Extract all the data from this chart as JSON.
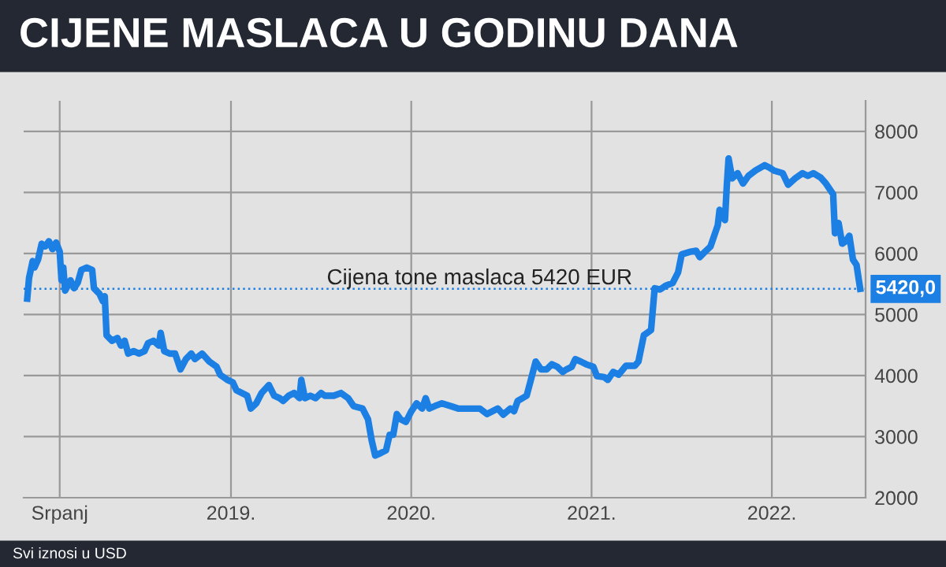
{
  "chart_data": {
    "type": "line",
    "title": "CIJENE MASLACA U GODINU DANA",
    "annotations": [
      {
        "text": "5420,0",
        "x": 2022.49,
        "y": 5420
      },
      "Svi iznosi u USD"
    ],
    "x": [
      2017.87,
      2017.88,
      2017.9,
      2017.91,
      2017.93,
      2017.95,
      2017.97,
      2017.99,
      2018.01,
      2018.03,
      2018.05,
      2018.06,
      2018.07,
      2018.08,
      2018.11,
      2018.13,
      2018.15,
      2018.17,
      2018.2,
      2018.23,
      2018.24,
      2018.27,
      2018.29,
      2018.3,
      2018.31,
      2018.34,
      2018.37,
      2018.39,
      2018.41,
      2018.43,
      2018.46,
      2018.49,
      2018.52,
      2018.54,
      2018.57,
      2018.6,
      2018.61,
      2018.63,
      2018.66,
      2018.69,
      2018.72,
      2018.75,
      2018.78,
      2018.8,
      2018.84,
      2018.88,
      2018.92,
      2018.94,
      2018.98,
      2019.01,
      2019.03,
      2019.06,
      2019.09,
      2019.11,
      2019.14,
      2019.17,
      2019.21,
      2019.24,
      2019.27,
      2019.29,
      2019.32,
      2019.35,
      2019.38,
      2019.39,
      2019.41,
      2019.44,
      2019.47,
      2019.5,
      2019.52,
      2019.57,
      2019.61,
      2019.65,
      2019.68,
      2019.73,
      2019.76,
      2019.78,
      2019.8,
      2019.83,
      2019.86,
      2019.88,
      2019.9,
      2019.92,
      2019.94,
      2019.97,
      2020.0,
      2020.03,
      2020.06,
      2020.08,
      2020.1,
      2020.13,
      2020.17,
      2020.22,
      2020.26,
      2020.3,
      2020.38,
      2020.42,
      2020.45,
      2020.48,
      2020.51,
      2020.55,
      2020.57,
      2020.59,
      2020.64,
      2020.66,
      2020.69,
      2020.72,
      2020.75,
      2020.78,
      2020.81,
      2020.84,
      2020.86,
      2020.89,
      2020.91,
      2020.94,
      2020.97,
      2021.01,
      2021.03,
      2021.07,
      2021.09,
      2021.12,
      2021.15,
      2021.19,
      2021.24,
      2021.26,
      2021.29,
      2021.33,
      2021.35,
      2021.38,
      2021.41,
      2021.45,
      2021.48,
      2021.5,
      2021.55,
      2021.58,
      2021.6,
      2021.63,
      2021.66,
      2021.7,
      2021.71,
      2021.74,
      2021.75,
      2021.76,
      2021.78,
      2021.81,
      2021.84,
      2021.87,
      2021.91,
      2021.96,
      2021.99,
      2022.01,
      2022.06,
      2022.09,
      2022.13,
      2022.17,
      2022.2,
      2022.23,
      2022.27,
      2022.3,
      2022.34,
      2022.35,
      2022.37,
      2022.39,
      2022.41,
      2022.43,
      2022.45,
      2022.47,
      2022.49
    ],
    "series": [
      {
        "color": "#1b7fe3",
        "values": [
          5260,
          5600,
          5875,
          5770,
          5900,
          6160,
          6115,
          6200,
          6070,
          6180,
          6030,
          5560,
          5770,
          5390,
          5560,
          5430,
          5520,
          5730,
          5770,
          5730,
          5430,
          5340,
          5215,
          5300,
          4660,
          4570,
          4615,
          4490,
          4570,
          4360,
          4400,
          4360,
          4400,
          4530,
          4570,
          4490,
          4700,
          4400,
          4360,
          4360,
          4100,
          4270,
          4360,
          4270,
          4360,
          4230,
          4145,
          4015,
          3930,
          3890,
          3760,
          3715,
          3670,
          3460,
          3545,
          3715,
          3845,
          3670,
          3630,
          3585,
          3670,
          3715,
          3630,
          3930,
          3630,
          3670,
          3630,
          3715,
          3670,
          3670,
          3715,
          3630,
          3500,
          3460,
          3285,
          2945,
          2690,
          2730,
          2775,
          3030,
          3030,
          3370,
          3285,
          3240,
          3415,
          3545,
          3460,
          3630,
          3460,
          3500,
          3545,
          3500,
          3460,
          3460,
          3460,
          3370,
          3415,
          3460,
          3360,
          3460,
          3415,
          3585,
          3670,
          3890,
          4230,
          4100,
          4100,
          4185,
          4145,
          4060,
          4100,
          4145,
          4270,
          4230,
          4185,
          4145,
          3990,
          3975,
          3930,
          4060,
          4015,
          4160,
          4160,
          4230,
          4660,
          4745,
          5430,
          5410,
          5470,
          5515,
          5690,
          5985,
          6030,
          6045,
          5940,
          6030,
          6115,
          6460,
          6715,
          6545,
          7100,
          7555,
          7230,
          7315,
          7145,
          7270,
          7360,
          7445,
          7400,
          7360,
          7315,
          7125,
          7230,
          7315,
          7270,
          7315,
          7245,
          7145,
          6970,
          6330,
          6500,
          6160,
          6200,
          6290,
          5900,
          5810,
          5420
        ]
      }
    ],
    "xlim": [
      2017.85,
      2022.52
    ],
    "xticks": [
      {
        "value": 2018.05,
        "label": "Srpanj"
      },
      {
        "value": 2019,
        "label": "2019."
      },
      {
        "value": 2020,
        "label": "2020."
      },
      {
        "value": 2021,
        "label": "2021."
      },
      {
        "value": 2022,
        "label": "2022."
      }
    ],
    "ylim": [
      2000,
      8500
    ],
    "yticks": [
      2000,
      3000,
      4000,
      5000,
      6000,
      7000,
      8000
    ],
    "grid": true,
    "ref_lines": [
      {
        "axis": "y",
        "value": 5420,
        "label": "Cijena tone maslaca 5420 EUR",
        "color": "#1b7fe3",
        "line_style": "dotted"
      }
    ]
  }
}
